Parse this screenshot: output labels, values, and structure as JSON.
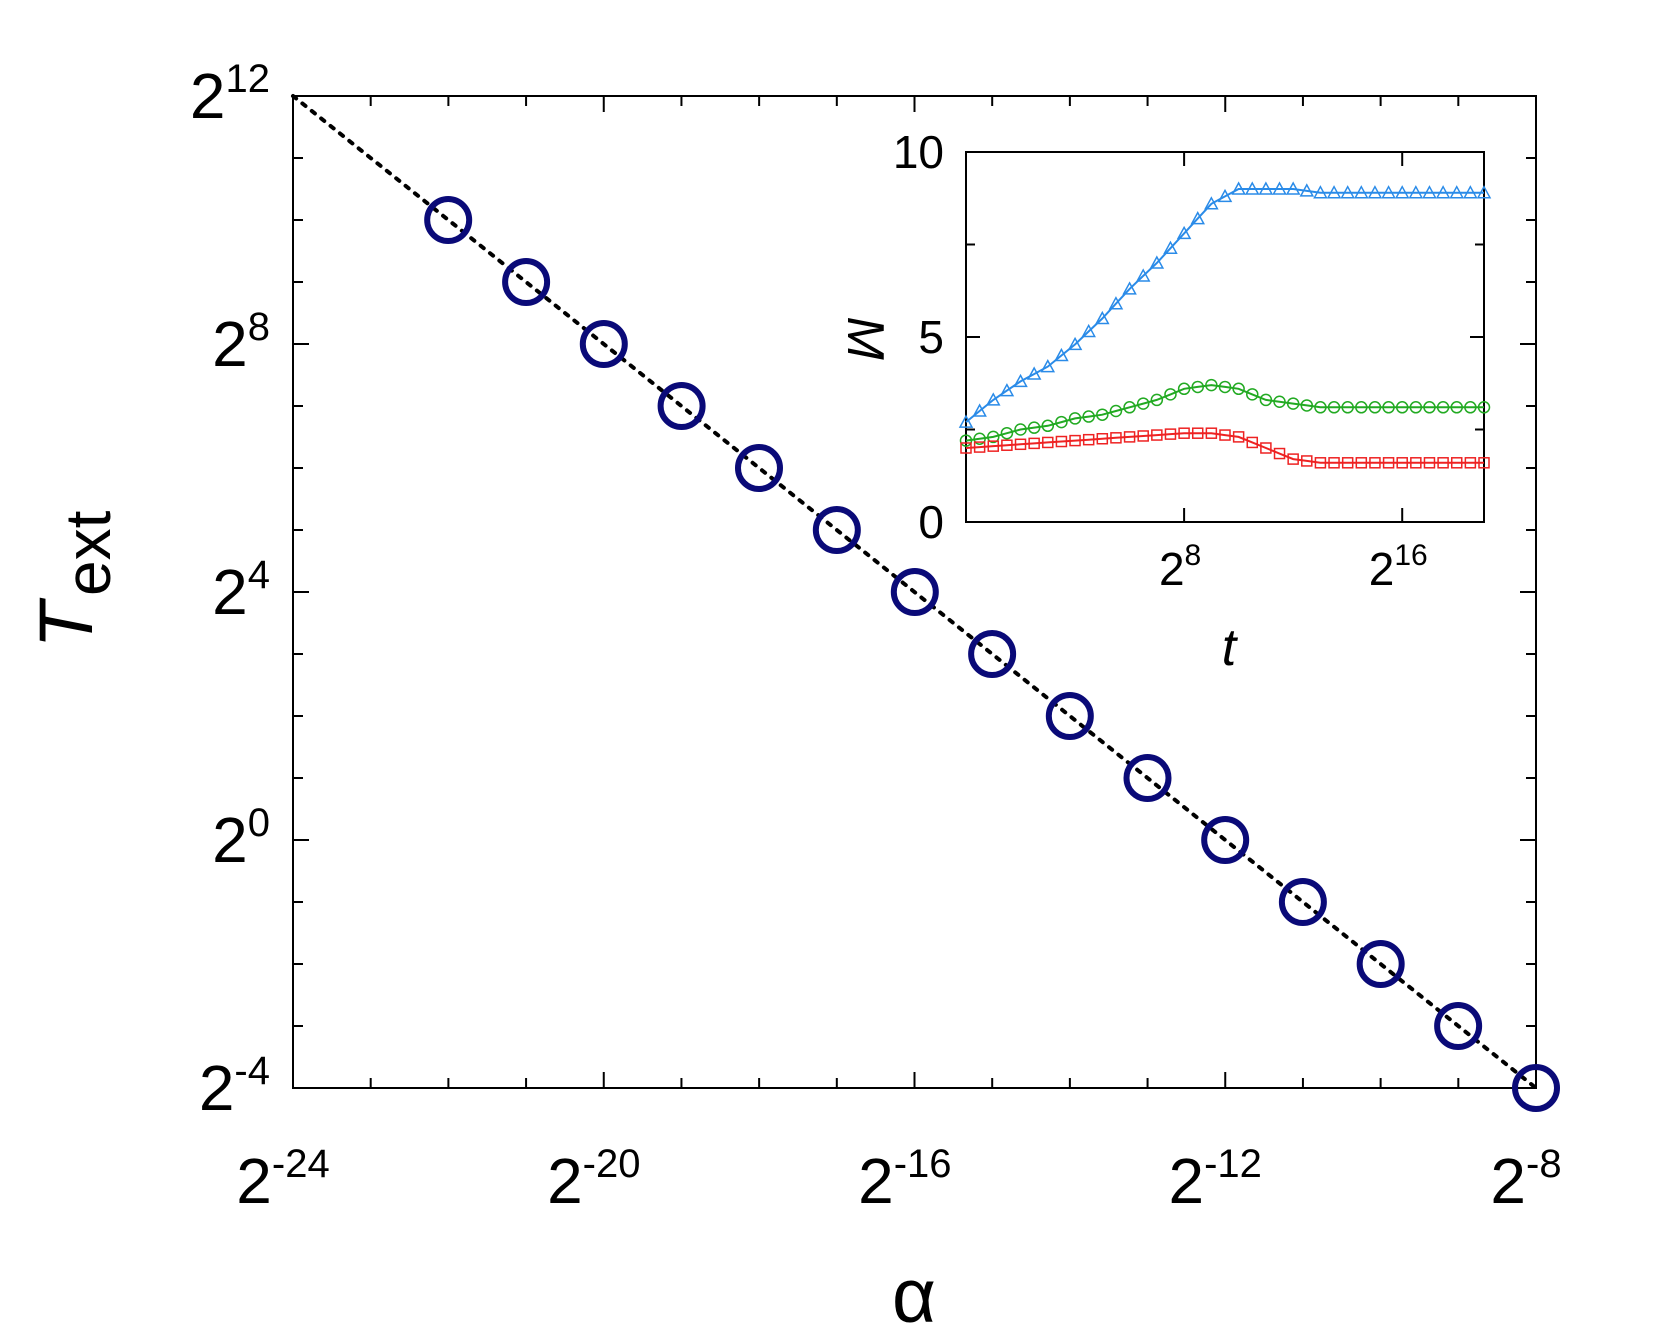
{
  "chart_data": [
    {
      "type": "scatter",
      "xlabel": "α",
      "ylabel": "T",
      "ylabel_subscript": "ext",
      "xscale": "log2",
      "yscale": "log2",
      "xlim": [
        5.96e-08,
        0.00390625
      ],
      "ylim": [
        0.0625,
        4096
      ],
      "x_ticks": [
        {
          "value": 5.96e-08,
          "base": "2",
          "exp": "-24"
        },
        {
          "value": 9.54e-07,
          "base": "2",
          "exp": "-20"
        },
        {
          "value": 1.53e-05,
          "base": "2",
          "exp": "-16"
        },
        {
          "value": 0.000244,
          "base": "2",
          "exp": "-12"
        },
        {
          "value": 0.00390625,
          "base": "2",
          "exp": "-8"
        }
      ],
      "y_ticks": [
        {
          "value": 0.0625,
          "base": "2",
          "exp": "-4"
        },
        {
          "value": 1,
          "base": "2",
          "exp": "0"
        },
        {
          "value": 16,
          "base": "2",
          "exp": "4"
        },
        {
          "value": 256,
          "base": "2",
          "exp": "8"
        },
        {
          "value": 4096,
          "base": "2",
          "exp": "12"
        }
      ],
      "series": [
        {
          "marker": "circle",
          "color": "#0a0a78",
          "x": [
            2.38e-07,
            4.77e-07,
            9.54e-07,
            1.91e-06,
            3.81e-06,
            7.63e-06,
            1.53e-05,
            3.05e-05,
            6.1e-05,
            0.000122,
            0.000244,
            0.000488,
            0.000977,
            0.00195,
            0.00390625
          ],
          "y": [
            1024,
            512,
            256,
            128,
            64,
            32,
            16,
            8,
            4,
            2,
            1,
            0.5,
            0.25,
            0.125,
            0.0625
          ]
        },
        {
          "marker": "dotted-line",
          "color": "#000000",
          "x": [
            5.96e-08,
            0.00390625
          ],
          "y": [
            4096,
            0.0625
          ]
        }
      ],
      "grid": false
    },
    {
      "type": "line",
      "xlabel": "t",
      "ylabel": "M",
      "xscale": "log2",
      "xlim": [
        1,
        524288
      ],
      "ylim": [
        0,
        10
      ],
      "x_ticks": [
        {
          "value": 256,
          "base": "2",
          "exp": "8"
        },
        {
          "value": 65536,
          "base": "2",
          "exp": "16"
        }
      ],
      "y_ticks": [
        {
          "value": 0,
          "label": "0"
        },
        {
          "value": 5,
          "label": "5"
        },
        {
          "value": 10,
          "label": "10"
        }
      ],
      "series": [
        {
          "marker": "triangle",
          "color": "#2a8be8",
          "x": [
            1,
            2,
            4,
            8,
            16,
            32,
            64,
            128,
            256,
            512,
            1024,
            2048,
            4096,
            8192,
            16384,
            32768,
            65536,
            131072,
            262144,
            524288
          ],
          "y": [
            2.7,
            3.3,
            3.8,
            4.2,
            4.8,
            5.5,
            6.3,
            7.0,
            7.8,
            8.6,
            9.0,
            9.0,
            9.0,
            8.9,
            8.9,
            8.9,
            8.9,
            8.9,
            8.9,
            8.9
          ]
        },
        {
          "marker": "circle",
          "color": "#22aa22",
          "x": [
            1,
            2,
            4,
            8,
            16,
            32,
            64,
            128,
            256,
            512,
            1024,
            2048,
            4096,
            8192,
            16384,
            32768,
            65536,
            131072,
            262144,
            524288
          ],
          "y": [
            2.2,
            2.3,
            2.5,
            2.6,
            2.8,
            2.9,
            3.1,
            3.3,
            3.6,
            3.7,
            3.6,
            3.3,
            3.2,
            3.1,
            3.1,
            3.1,
            3.1,
            3.1,
            3.1,
            3.1
          ]
        },
        {
          "marker": "square",
          "color": "#ee2222",
          "x": [
            1,
            2,
            4,
            8,
            16,
            32,
            64,
            128,
            256,
            512,
            1024,
            2048,
            4096,
            8192,
            16384,
            32768,
            65536,
            131072,
            262144,
            524288
          ],
          "y": [
            2.0,
            2.05,
            2.1,
            2.15,
            2.2,
            2.25,
            2.3,
            2.35,
            2.4,
            2.4,
            2.3,
            2.0,
            1.7,
            1.6,
            1.6,
            1.6,
            1.6,
            1.6,
            1.6,
            1.6
          ]
        }
      ],
      "grid": false
    }
  ]
}
